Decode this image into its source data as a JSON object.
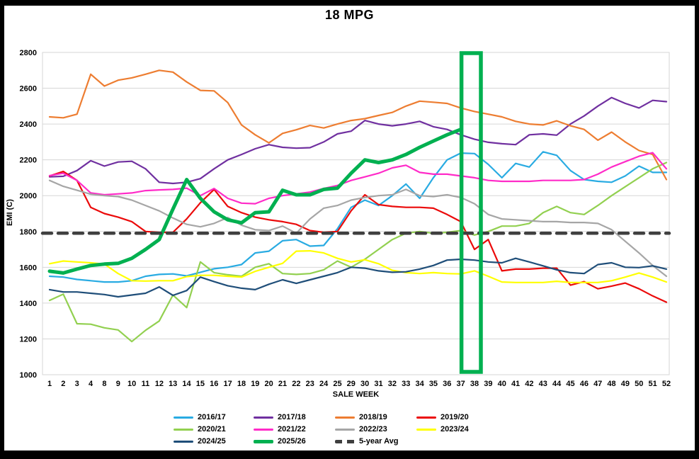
{
  "window": {
    "title": "18 MPG"
  },
  "chart_data": {
    "type": "line",
    "title": "18 MPG",
    "xlabel": "SALE WEEK",
    "ylabel": "EMI (C)",
    "ylim": [
      1000,
      2800
    ],
    "yticks": [
      2800,
      2600,
      2400,
      2200,
      2000,
      1800,
      1600,
      1400,
      1200,
      1000
    ],
    "grid": true,
    "legend_position": "bottom",
    "categories": [
      "1",
      "2",
      "3",
      "4",
      "8",
      "9",
      "10",
      "11",
      "12",
      "13",
      "14",
      "15",
      "16",
      "17",
      "18",
      "19",
      "20",
      "21",
      "22",
      "23",
      "24",
      "25",
      "29",
      "30",
      "31",
      "32",
      "33",
      "34",
      "35",
      "36",
      "37",
      "38",
      "39",
      "40",
      "41",
      "42",
      "43",
      "44",
      "45",
      "46",
      "47",
      "48",
      "49",
      "50",
      "51",
      "52"
    ],
    "series": [
      {
        "name": "2016/17",
        "color": "#29ABE2",
        "width": 2.2,
        "values": [
          1550,
          1545,
          1532,
          1525,
          1518,
          1518,
          1525,
          1550,
          1560,
          1563,
          1552,
          1572,
          1592,
          1600,
          1615,
          1680,
          1690,
          1748,
          1755,
          1718,
          1722,
          1815,
          1935,
          1975,
          1945,
          2000,
          2065,
          1985,
          2100,
          2200,
          2238,
          2235,
          2175,
          2100,
          2180,
          2160,
          2245,
          2225,
          2140,
          2090,
          2080,
          2075,
          2110,
          2165,
          2130,
          2130
        ]
      },
      {
        "name": "2017/18",
        "color": "#7030A0",
        "width": 2.2,
        "values": [
          2105,
          2108,
          2140,
          2195,
          2165,
          2188,
          2192,
          2150,
          2075,
          2068,
          2075,
          2095,
          2150,
          2200,
          2230,
          2262,
          2285,
          2270,
          2265,
          2268,
          2300,
          2345,
          2360,
          2420,
          2400,
          2390,
          2400,
          2415,
          2385,
          2370,
          2340,
          2315,
          2298,
          2290,
          2285,
          2340,
          2345,
          2338,
          2400,
          2445,
          2500,
          2548,
          2515,
          2490,
          2532,
          2525
        ]
      },
      {
        "name": "2018/19",
        "color": "#ED7D31",
        "width": 2.2,
        "values": [
          2440,
          2435,
          2455,
          2678,
          2612,
          2645,
          2658,
          2678,
          2700,
          2690,
          2635,
          2588,
          2585,
          2520,
          2395,
          2340,
          2295,
          2348,
          2368,
          2392,
          2378,
          2400,
          2420,
          2430,
          2448,
          2465,
          2500,
          2528,
          2522,
          2515,
          2490,
          2470,
          2455,
          2440,
          2415,
          2400,
          2395,
          2418,
          2390,
          2370,
          2310,
          2355,
          2300,
          2252,
          2230,
          2090
        ]
      },
      {
        "name": "2019/20",
        "color": "#EB0A0A",
        "width": 2.2,
        "values": [
          2110,
          2135,
          2085,
          1935,
          1900,
          1880,
          1855,
          1800,
          1795,
          1795,
          1870,
          1960,
          2035,
          1940,
          1905,
          1880,
          1865,
          1855,
          1840,
          1805,
          1795,
          1800,
          1915,
          2005,
          1950,
          1940,
          1935,
          1935,
          1930,
          1895,
          1855,
          1700,
          1755,
          1580,
          1590,
          1590,
          1595,
          1595,
          1500,
          1520,
          1480,
          1495,
          1512,
          1480,
          1440,
          1405
        ]
      },
      {
        "name": "2020/21",
        "color": "#92D050",
        "width": 2.2,
        "values": [
          1415,
          1450,
          1285,
          1282,
          1262,
          1250,
          1185,
          1248,
          1300,
          1445,
          1375,
          1630,
          1570,
          1558,
          1550,
          1600,
          1620,
          1565,
          1560,
          1565,
          1586,
          1635,
          1600,
          1645,
          1700,
          1755,
          1790,
          1800,
          1790,
          1795,
          1805,
          1780,
          1800,
          1830,
          1830,
          1845,
          1905,
          1940,
          1905,
          1895,
          1945,
          2000,
          2050,
          2100,
          2150,
          2185
        ]
      },
      {
        "name": "2021/22",
        "color": "#FF2BC8",
        "width": 2.2,
        "values": [
          2112,
          2125,
          2085,
          2015,
          2005,
          2010,
          2015,
          2028,
          2032,
          2035,
          2042,
          2000,
          2040,
          1985,
          1958,
          1955,
          1985,
          2000,
          2010,
          2020,
          2040,
          2057,
          2085,
          2105,
          2125,
          2155,
          2170,
          2130,
          2120,
          2120,
          2110,
          2100,
          2085,
          2080,
          2080,
          2080,
          2085,
          2085,
          2085,
          2090,
          2120,
          2160,
          2190,
          2220,
          2240,
          2150
        ]
      },
      {
        "name": "2022/23",
        "color": "#A6A6A6",
        "width": 2.2,
        "values": [
          2085,
          2052,
          2030,
          2008,
          2000,
          1995,
          1975,
          1945,
          1915,
          1875,
          1840,
          1826,
          1845,
          1878,
          1835,
          1810,
          1805,
          1830,
          1790,
          1870,
          1930,
          1945,
          1975,
          1990,
          2000,
          2005,
          2035,
          2000,
          1995,
          2005,
          1990,
          1955,
          1895,
          1870,
          1865,
          1860,
          1855,
          1855,
          1850,
          1850,
          1845,
          1810,
          1745,
          1680,
          1610,
          1550
        ]
      },
      {
        "name": "2023/24",
        "color": "#FFFF00",
        "width": 2.2,
        "values": [
          1620,
          1635,
          1630,
          1625,
          1618,
          1565,
          1525,
          1523,
          1525,
          1525,
          1548,
          1555,
          1555,
          1550,
          1545,
          1577,
          1600,
          1622,
          1690,
          1692,
          1680,
          1650,
          1630,
          1642,
          1620,
          1583,
          1570,
          1565,
          1570,
          1565,
          1563,
          1580,
          1550,
          1518,
          1515,
          1515,
          1515,
          1522,
          1515,
          1515,
          1515,
          1525,
          1545,
          1568,
          1545,
          1518
        ]
      },
      {
        "name": "2024/25",
        "color": "#1F4E79",
        "width": 2.2,
        "values": [
          1475,
          1462,
          1462,
          1455,
          1448,
          1435,
          1445,
          1455,
          1490,
          1443,
          1470,
          1545,
          1520,
          1497,
          1483,
          1475,
          1505,
          1530,
          1510,
          1530,
          1550,
          1570,
          1600,
          1595,
          1580,
          1572,
          1575,
          1590,
          1610,
          1640,
          1645,
          1640,
          1630,
          1625,
          1650,
          1630,
          1608,
          1586,
          1570,
          1565,
          1615,
          1625,
          1600,
          1598,
          1608,
          1590
        ]
      },
      {
        "name": "2025/26",
        "color": "#00B050",
        "width": 5,
        "values": [
          1578,
          1568,
          1590,
          1610,
          1618,
          1622,
          1650,
          1700,
          1755,
          1925,
          2090,
          1985,
          1910,
          1865,
          1848,
          1905,
          1910,
          2030,
          2005,
          2005,
          2035,
          2042,
          2125,
          2200,
          2185,
          2200,
          2230,
          2270,
          2305,
          2340,
          2370,
          null,
          null,
          null,
          null,
          null,
          null,
          null,
          null,
          null,
          null,
          null,
          null,
          null,
          null,
          null
        ]
      },
      {
        "name": "5-year Avg",
        "color": "#3F3F3F",
        "width": 4.5,
        "dash": "13 9",
        "constant": 1790
      }
    ],
    "highlight": {
      "from": "37",
      "to": "38",
      "color": "#00B050"
    }
  }
}
